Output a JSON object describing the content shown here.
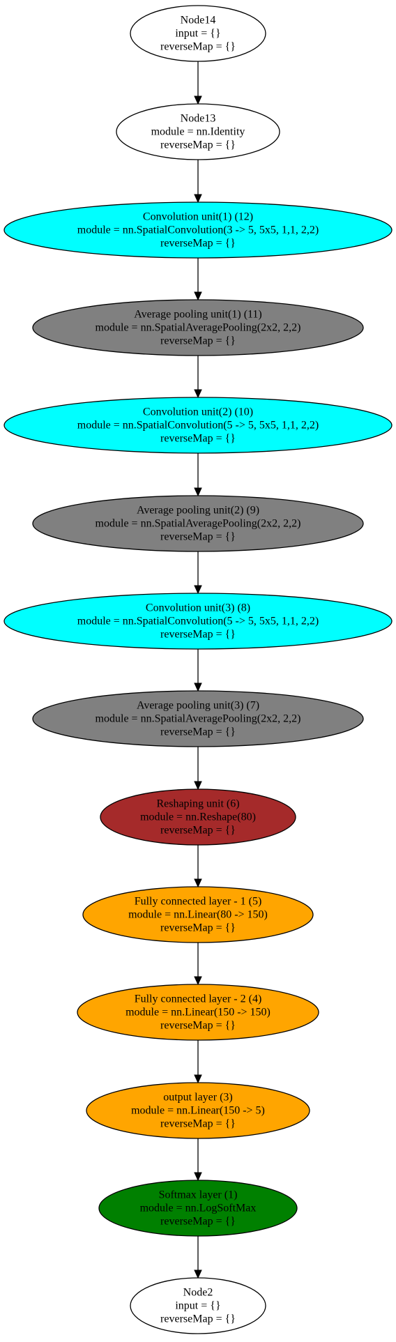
{
  "nodes": [
    {
      "lines": [
        "Node14",
        "input = {}",
        "reverseMap = {}"
      ],
      "fill": "#ffffff",
      "text_color": "#000000"
    },
    {
      "lines": [
        "Node13",
        "module = nn.Identity",
        "reverseMap = {}"
      ],
      "fill": "#ffffff",
      "text_color": "#000000"
    },
    {
      "lines": [
        "Convolution unit(1) (12)",
        "module = nn.SpatialConvolution(3 -> 5, 5x5, 1,1, 2,2)",
        "reverseMap = {}"
      ],
      "fill": "#00ffff",
      "text_color": "#000000"
    },
    {
      "lines": [
        "Average pooling unit(1) (11)",
        "module = nn.SpatialAveragePooling(2x2, 2,2)",
        "reverseMap = {}"
      ],
      "fill": "#808080",
      "text_color": "#000000"
    },
    {
      "lines": [
        "Convolution unit(2) (10)",
        "module = nn.SpatialConvolution(5 -> 5, 5x5, 1,1, 2,2)",
        "reverseMap = {}"
      ],
      "fill": "#00ffff",
      "text_color": "#000000"
    },
    {
      "lines": [
        "Average pooling unit(2) (9)",
        "module = nn.SpatialAveragePooling(2x2, 2,2)",
        "reverseMap = {}"
      ],
      "fill": "#808080",
      "text_color": "#000000"
    },
    {
      "lines": [
        "Convolution unit(3) (8)",
        "module = nn.SpatialConvolution(5 -> 5, 5x5, 1,1, 2,2)",
        "reverseMap = {}"
      ],
      "fill": "#00ffff",
      "text_color": "#000000"
    },
    {
      "lines": [
        "Average pooling unit(3) (7)",
        "module = nn.SpatialAveragePooling(2x2, 2,2)",
        "reverseMap = {}"
      ],
      "fill": "#808080",
      "text_color": "#000000"
    },
    {
      "lines": [
        "Reshaping unit (6)",
        "module = nn.Reshape(80)",
        "reverseMap = {}"
      ],
      "fill": "#a52a2a",
      "text_color": "#000000"
    },
    {
      "lines": [
        "Fully connected layer - 1 (5)",
        "module = nn.Linear(80 -> 150)",
        "reverseMap = {}"
      ],
      "fill": "#ffa500",
      "text_color": "#000000"
    },
    {
      "lines": [
        "Fully connected layer - 2 (4)",
        "module = nn.Linear(150 -> 150)",
        "reverseMap = {}"
      ],
      "fill": "#ffa500",
      "text_color": "#000000"
    },
    {
      "lines": [
        "output layer (3)",
        "module = nn.Linear(150 -> 5)",
        "reverseMap = {}"
      ],
      "fill": "#ffa500",
      "text_color": "#000000"
    },
    {
      "lines": [
        "Softmax layer (1)",
        "module = nn.LogSoftMax",
        "reverseMap = {}"
      ],
      "fill": "#008000",
      "text_color": "#000000"
    },
    {
      "lines": [
        "Node2",
        "input = {}",
        "reverseMap = {}"
      ],
      "fill": "#ffffff",
      "text_color": "#000000"
    }
  ],
  "edges": [
    [
      0,
      1
    ],
    [
      1,
      2
    ],
    [
      2,
      3
    ],
    [
      3,
      4
    ],
    [
      4,
      5
    ],
    [
      5,
      6
    ],
    [
      6,
      7
    ],
    [
      7,
      8
    ],
    [
      8,
      9
    ],
    [
      9,
      10
    ],
    [
      10,
      11
    ],
    [
      11,
      12
    ],
    [
      12,
      13
    ]
  ]
}
